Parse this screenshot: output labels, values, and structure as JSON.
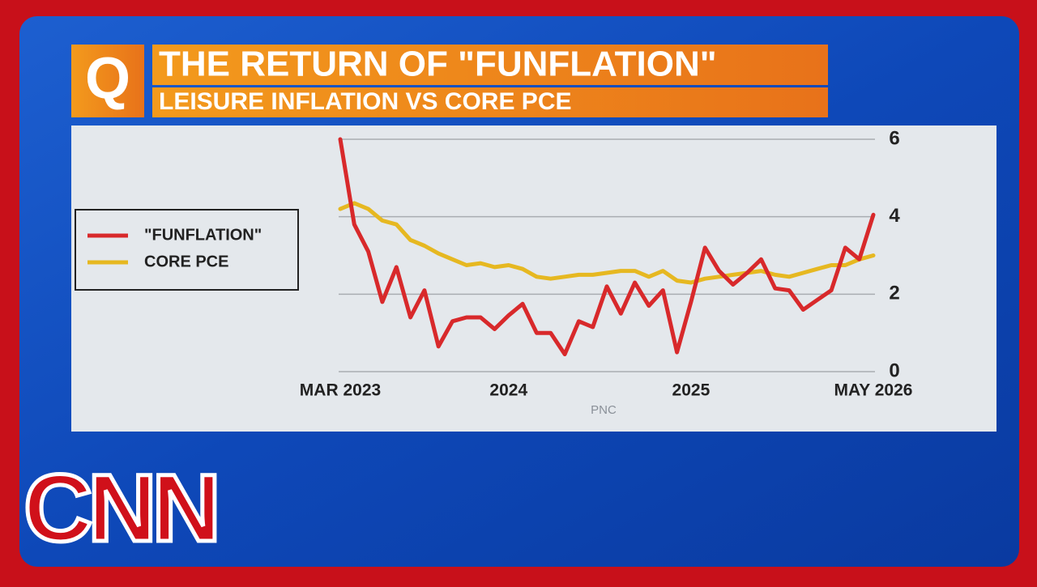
{
  "badge": "Q",
  "logo": "CNN",
  "chart_data": {
    "type": "line",
    "title": "THE RETURN OF \"FUNFLATION\"",
    "subtitle": "LEISURE INFLATION VS CORE PCE",
    "source": "PNC",
    "categories": [
      "MAR 2023",
      null,
      null,
      null,
      null,
      null,
      null,
      null,
      null,
      null,
      null,
      null,
      "2024",
      null,
      null,
      null,
      null,
      null,
      null,
      null,
      null,
      null,
      null,
      null,
      null,
      "2025",
      null,
      null,
      null,
      null,
      null,
      null,
      null,
      null,
      null,
      null,
      null,
      null,
      "MAY 2026"
    ],
    "series": [
      {
        "name": "\"FUNFLATION\"",
        "color": "#d8292b",
        "values": [
          6,
          3.8,
          3.1,
          1.8,
          2.7,
          1.4,
          2.1,
          0.65,
          1.3,
          1.4,
          1.4,
          1.1,
          1.45,
          1.75,
          1.0,
          1.0,
          0.45,
          1.3,
          1.15,
          2.2,
          1.5,
          2.3,
          1.7,
          2.1,
          0.5,
          1.8,
          3.2,
          2.6,
          2.25,
          2.55,
          2.9,
          2.15,
          2.1,
          1.6,
          1.85,
          2.1,
          3.2,
          2.9,
          4.05
        ]
      },
      {
        "name": "CORE PCE",
        "color": "#e6b821",
        "values": [
          4.2,
          4.35,
          4.2,
          3.9,
          3.8,
          3.4,
          3.25,
          3.05,
          2.9,
          2.75,
          2.8,
          2.7,
          2.75,
          2.65,
          2.45,
          2.4,
          2.45,
          2.5,
          2.5,
          2.55,
          2.6,
          2.6,
          2.45,
          2.6,
          2.35,
          2.3,
          2.4,
          2.45,
          2.5,
          2.55,
          2.6,
          2.5,
          2.45,
          2.55,
          2.65,
          2.75,
          2.75,
          2.9,
          3.0
        ]
      }
    ],
    "ylim": [
      0,
      6
    ],
    "yticks": [
      0,
      2,
      4,
      6
    ],
    "grid": true
  }
}
